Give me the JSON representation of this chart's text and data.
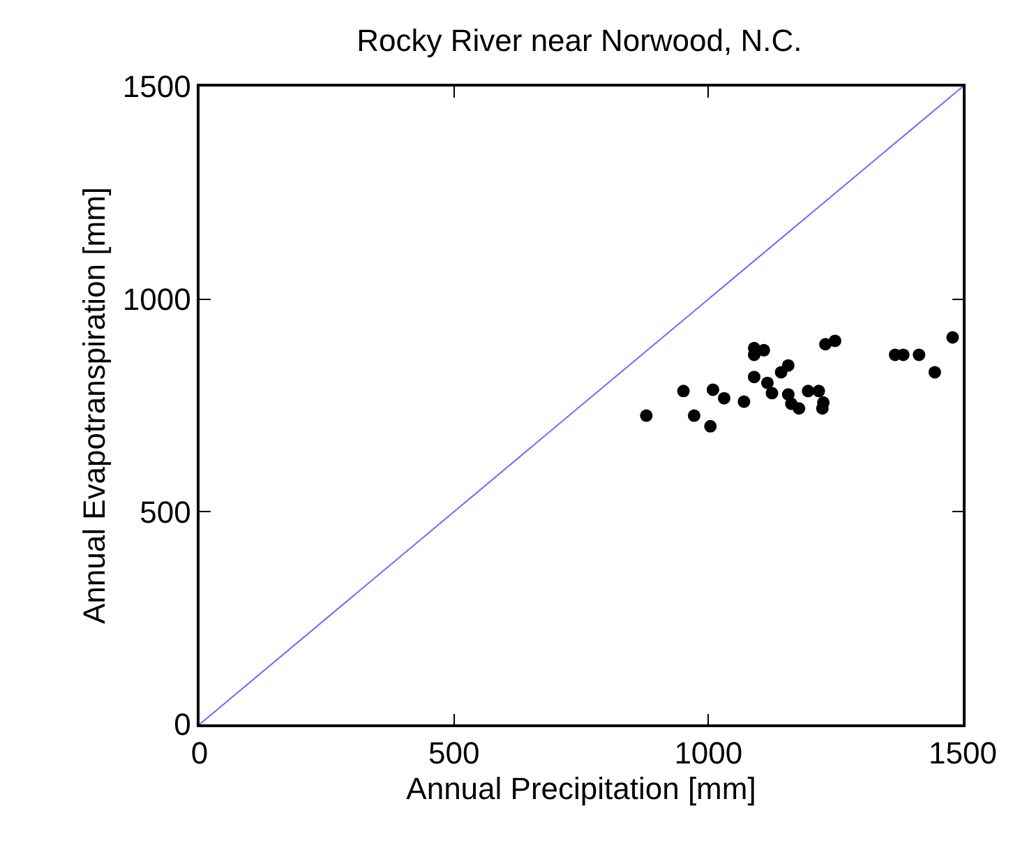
{
  "chart_data": {
    "type": "scatter",
    "title": "Rocky River near Norwood, N.C.",
    "xlabel": "Annual Precipitation [mm]",
    "ylabel": "Annual Evapotranspiration [mm]",
    "xlim": [
      0,
      1500
    ],
    "ylim": [
      0,
      1500
    ],
    "xticks": [
      0,
      500,
      1000,
      1500
    ],
    "yticks": [
      0,
      500,
      1000,
      1500
    ],
    "grid": false,
    "marker": "circle",
    "series": [
      {
        "color": "#000000",
        "x": [
          878,
          951,
          972,
          1004,
          1009,
          1031,
          1070,
          1090,
          1090,
          1109,
          1090,
          1116,
          1125,
          1143,
          1157,
          1157,
          1163,
          1178,
          1196,
          1217,
          1226,
          1224,
          1230,
          1249,
          1367,
          1383,
          1414,
          1445,
          1480
        ],
        "values": [
          726,
          784,
          726,
          701,
          787,
          767,
          759,
          885,
          869,
          880,
          817,
          803,
          779,
          828,
          844,
          776,
          754,
          743,
          784,
          784,
          757,
          743,
          894,
          902,
          869,
          869,
          869,
          828,
          910
        ]
      },
      {
        "type": "line",
        "color": "#6b6bff",
        "line_style": "solid",
        "marker": "none",
        "x": [
          0,
          1500
        ],
        "values": [
          0,
          1500
        ]
      }
    ]
  }
}
